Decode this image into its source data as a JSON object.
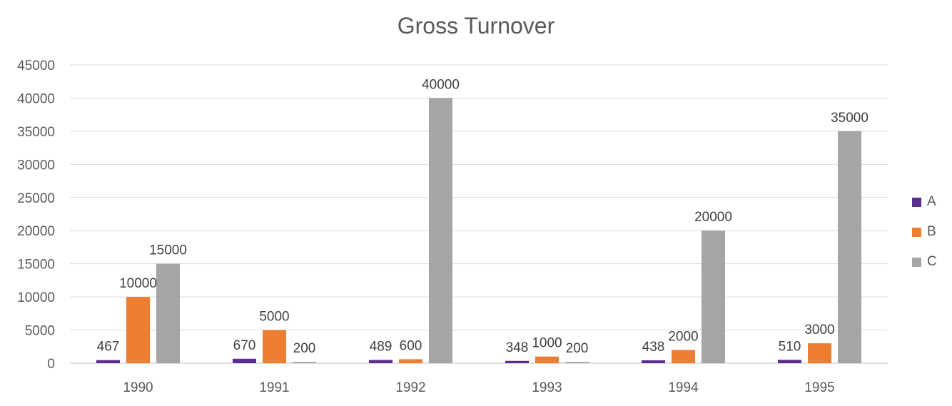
{
  "chart_data": {
    "type": "bar",
    "title": "Gross Turnover",
    "categories": [
      "1990",
      "1991",
      "1992",
      "1993",
      "1994",
      "1995"
    ],
    "series": [
      {
        "name": "A",
        "color": "#5b2d8e",
        "values": [
          467,
          670,
          489,
          348,
          438,
          510
        ]
      },
      {
        "name": "B",
        "color": "#ed7d31",
        "values": [
          10000,
          5000,
          600,
          1000,
          2000,
          3000
        ]
      },
      {
        "name": "C",
        "color": "#a5a5a5",
        "values": [
          15000,
          200,
          40000,
          200,
          20000,
          35000
        ]
      }
    ],
    "ylim": [
      0,
      45000
    ],
    "yticks": [
      0,
      5000,
      10000,
      15000,
      20000,
      25000,
      30000,
      35000,
      40000,
      45000
    ],
    "grid": true,
    "legend_position": "right",
    "data_labels": true
  }
}
